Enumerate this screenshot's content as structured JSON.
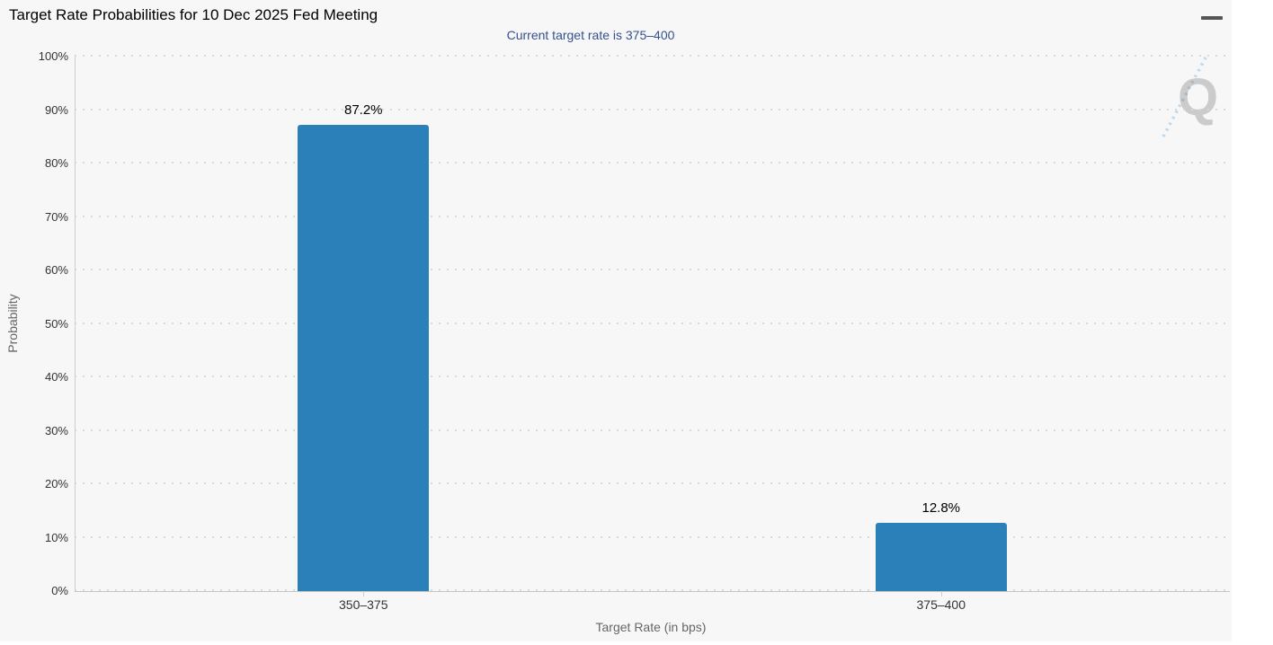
{
  "header": {
    "menu_tooltip": "Chart context menu"
  },
  "chart_data": {
    "type": "bar",
    "title": "Target Rate Probabilities for 10 Dec 2025 Fed Meeting",
    "subtitle": "Current target rate is 375–400",
    "subtitle_color": "#33518e",
    "categories": [
      "350–375",
      "375–400"
    ],
    "values": [
      87.2,
      12.8
    ],
    "value_labels": [
      "87.2%",
      "12.8%"
    ],
    "xlabel": "Target Rate (in bps)",
    "ylabel": "Probability",
    "ylim": [
      0,
      100
    ],
    "ytick_step": 10,
    "ytick_labels": [
      "0%",
      "10%",
      "20%",
      "30%",
      "40%",
      "50%",
      "60%",
      "70%",
      "80%",
      "90%",
      "100%"
    ],
    "grid": "dotted horizontal, gridlines on",
    "legend": "none",
    "bar_color": "#2b80b9",
    "watermark_letter": "Q"
  }
}
